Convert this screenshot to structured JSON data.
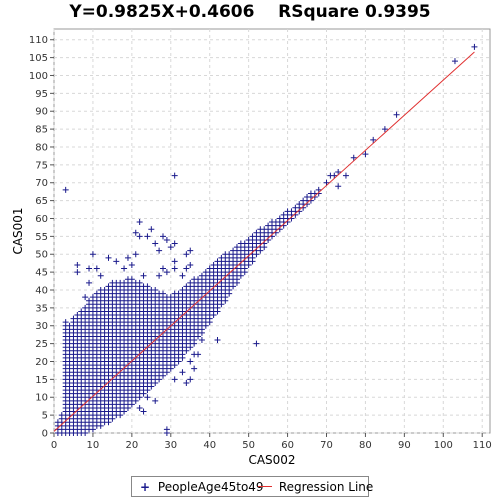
{
  "title": "Y=0.9825X+0.4606    RSquare 0.9395",
  "colors": {
    "points": "#1a1a8c",
    "regression": "#e03030",
    "grid": "#d8d8d8",
    "plot_bg": "#ffffff"
  },
  "legend": {
    "position": "bottom",
    "items": [
      {
        "label": "PeopleAge45to49",
        "marker": "plus"
      },
      {
        "label": "Regression Line",
        "marker": "line"
      }
    ]
  },
  "chart_data": {
    "type": "scatter",
    "title": "Y=0.9825X+0.4606    RSquare 0.9395",
    "xlabel": "CAS002",
    "ylabel": "CAS001",
    "xlim": [
      0,
      112
    ],
    "ylim": [
      0,
      113
    ],
    "xticks": [
      0,
      10,
      20,
      30,
      40,
      50,
      60,
      70,
      80,
      90,
      100,
      110
    ],
    "yticks": [
      0,
      5,
      10,
      15,
      20,
      25,
      30,
      35,
      40,
      45,
      50,
      55,
      60,
      65,
      70,
      75,
      80,
      85,
      90,
      95,
      100,
      105,
      110
    ],
    "grid": true,
    "regression": {
      "slope": 0.9825,
      "intercept": 0.4606,
      "r_squared": 0.9395,
      "x_range": [
        0,
        108
      ]
    },
    "series": [
      {
        "name": "PeopleAge45to49",
        "marker": "plus",
        "dense_bands": [
          [
            1,
            0,
            3
          ],
          [
            2,
            0,
            5
          ],
          [
            3,
            0,
            31
          ],
          [
            4,
            0,
            30
          ],
          [
            5,
            0,
            32
          ],
          [
            6,
            0,
            33
          ],
          [
            7,
            0,
            34
          ],
          [
            8,
            1,
            35
          ],
          [
            9,
            1,
            37
          ],
          [
            10,
            1,
            38
          ],
          [
            11,
            2,
            39
          ],
          [
            12,
            2,
            40
          ],
          [
            13,
            3,
            40
          ],
          [
            14,
            3,
            41
          ],
          [
            15,
            4,
            42
          ],
          [
            16,
            5,
            42
          ],
          [
            17,
            5,
            42
          ],
          [
            18,
            6,
            42
          ],
          [
            19,
            7,
            43
          ],
          [
            20,
            8,
            43
          ],
          [
            21,
            9,
            42
          ],
          [
            22,
            10,
            42
          ],
          [
            23,
            11,
            41
          ],
          [
            24,
            12,
            41
          ],
          [
            25,
            13,
            40
          ],
          [
            26,
            14,
            40
          ],
          [
            27,
            15,
            39
          ],
          [
            28,
            16,
            39
          ],
          [
            29,
            17,
            38
          ],
          [
            30,
            18,
            38
          ],
          [
            31,
            19,
            39
          ],
          [
            32,
            20,
            39
          ],
          [
            33,
            21,
            40
          ],
          [
            34,
            23,
            41
          ],
          [
            35,
            24,
            42
          ],
          [
            36,
            25,
            43
          ],
          [
            37,
            27,
            43
          ],
          [
            38,
            28,
            44
          ],
          [
            39,
            30,
            45
          ],
          [
            40,
            31,
            46
          ],
          [
            41,
            33,
            47
          ],
          [
            42,
            34,
            48
          ],
          [
            43,
            36,
            49
          ],
          [
            44,
            37,
            50
          ],
          [
            45,
            39,
            50
          ],
          [
            46,
            41,
            51
          ],
          [
            47,
            42,
            52
          ],
          [
            48,
            44,
            53
          ],
          [
            49,
            45,
            53
          ],
          [
            50,
            47,
            54
          ],
          [
            51,
            48,
            55
          ],
          [
            52,
            50,
            56
          ],
          [
            53,
            51,
            57
          ],
          [
            54,
            52,
            57
          ],
          [
            55,
            54,
            58
          ],
          [
            56,
            55,
            59
          ],
          [
            57,
            56,
            59
          ],
          [
            58,
            57,
            60
          ],
          [
            59,
            58,
            61
          ],
          [
            60,
            59,
            62
          ],
          [
            61,
            60,
            62
          ],
          [
            62,
            61,
            63
          ],
          [
            63,
            62,
            64
          ],
          [
            64,
            63,
            65
          ],
          [
            65,
            64,
            66
          ],
          [
            66,
            65,
            67
          ],
          [
            67,
            66,
            67
          ],
          [
            68,
            67,
            68
          ]
        ],
        "outliers": [
          [
            3,
            68
          ],
          [
            31,
            72
          ],
          [
            22,
            59
          ],
          [
            25,
            57
          ],
          [
            21,
            56
          ],
          [
            22,
            55
          ],
          [
            24,
            55
          ],
          [
            28,
            55
          ],
          [
            29,
            54
          ],
          [
            30,
            52
          ],
          [
            31,
            53
          ],
          [
            26,
            53
          ],
          [
            27,
            51
          ],
          [
            35,
            51
          ],
          [
            10,
            50
          ],
          [
            21,
            50
          ],
          [
            19,
            49
          ],
          [
            14,
            49
          ],
          [
            16,
            48
          ],
          [
            20,
            47
          ],
          [
            6,
            47
          ],
          [
            11,
            46
          ],
          [
            9,
            46
          ],
          [
            6,
            45
          ],
          [
            12,
            44
          ],
          [
            18,
            46
          ],
          [
            31,
            48
          ],
          [
            31,
            46
          ],
          [
            34,
            46
          ],
          [
            35,
            47
          ],
          [
            34,
            50
          ],
          [
            28,
            46
          ],
          [
            29,
            45
          ],
          [
            33,
            44
          ],
          [
            23,
            44
          ],
          [
            27,
            44
          ],
          [
            9,
            42
          ],
          [
            8,
            38
          ],
          [
            38,
            26
          ],
          [
            42,
            26
          ],
          [
            52,
            25
          ],
          [
            31,
            15
          ],
          [
            33,
            17
          ],
          [
            29,
            19
          ],
          [
            35,
            20
          ],
          [
            36,
            22
          ],
          [
            37,
            22
          ],
          [
            36,
            18
          ],
          [
            35,
            15
          ],
          [
            34,
            14
          ],
          [
            30,
            22
          ],
          [
            29,
            25
          ],
          [
            31,
            24
          ],
          [
            23,
            6
          ],
          [
            22,
            7
          ],
          [
            24,
            10
          ],
          [
            26,
            9
          ],
          [
            29,
            1
          ],
          [
            29,
            0
          ],
          [
            7,
            0
          ],
          [
            8,
            0
          ],
          [
            70,
            70
          ],
          [
            71,
            72
          ],
          [
            72,
            72
          ],
          [
            73,
            69
          ],
          [
            73,
            73
          ],
          [
            75,
            72
          ],
          [
            77,
            77
          ],
          [
            80,
            78
          ],
          [
            82,
            82
          ],
          [
            85,
            85
          ],
          [
            88,
            89
          ],
          [
            103,
            104
          ],
          [
            108,
            108
          ]
        ]
      }
    ]
  }
}
